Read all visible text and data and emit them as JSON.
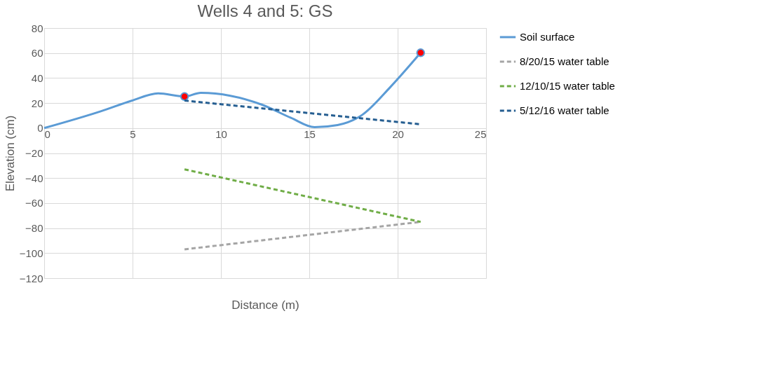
{
  "chart_data": {
    "type": "line",
    "title": "Wells 4 and 5: GS",
    "xlabel": "Distance (m)",
    "ylabel": "Elevation (cm)",
    "xlim": [
      0,
      25
    ],
    "xticks": [
      0,
      5,
      10,
      15,
      20,
      25
    ],
    "ylim": [
      -120,
      80
    ],
    "yticks": [
      -120,
      -100,
      -80,
      -60,
      -40,
      -20,
      0,
      20,
      40,
      60,
      80
    ],
    "grid": true,
    "legend": "right",
    "series": [
      {
        "name": "Soil surface",
        "color": "#5b9bd5",
        "line_style": "solid",
        "marker": "none",
        "x": [
          0,
          3.2,
          4.95,
          6.45,
          7.94,
          8.86,
          12.3,
          13.96,
          15.3,
          16.6,
          18.0,
          19.6,
          21.3
        ],
        "values": [
          0,
          13.4,
          21.9,
          27.8,
          25.2,
          28.2,
          18.8,
          8.2,
          0.7,
          2.4,
          10.6,
          33,
          60.2
        ]
      },
      {
        "type": "scatter",
        "color": "#ff0000",
        "marker": "circle",
        "x": [
          7.94,
          21.3
        ],
        "values": [
          25.2,
          60.2
        ]
      },
      {
        "name": "8/20/15 water table",
        "color": "#a5a5a5",
        "line_style": "dashed",
        "marker": "none",
        "x": [
          7.94,
          21.3
        ],
        "values": [
          -97,
          -75
        ]
      },
      {
        "name": "12/10/15 water table",
        "color": "#70ad47",
        "line_style": "dashed",
        "marker": "none",
        "x": [
          7.94,
          21.3
        ],
        "values": [
          -33,
          -75
        ]
      },
      {
        "name": "5/12/16 water table",
        "color": "#255e91",
        "line_style": "dashed",
        "marker": "none",
        "x": [
          7.94,
          21.3
        ],
        "values": [
          22,
          3
        ]
      }
    ]
  }
}
